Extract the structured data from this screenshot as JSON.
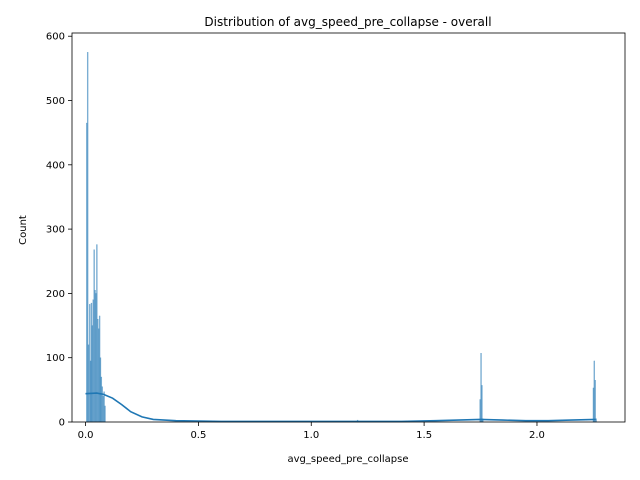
{
  "chart_data": {
    "type": "histogram",
    "title": "Distribution of avg_speed_pre_collapse - overall",
    "xlabel": "avg_speed_pre_collapse",
    "ylabel": "Count",
    "xlim": [
      -0.06,
      2.39
    ],
    "ylim": [
      0,
      605
    ],
    "xticks": [
      "0.0",
      "0.5",
      "1.0",
      "1.5",
      "2.0"
    ],
    "yticks": [
      "0",
      "100",
      "200",
      "300",
      "400",
      "500",
      "600"
    ],
    "grid": false,
    "legend": "none",
    "bar_color": "#1f77b4",
    "kde_color": "#1f77b4",
    "bins": [
      {
        "x": 0.005,
        "count": 465
      },
      {
        "x": 0.009,
        "count": 575
      },
      {
        "x": 0.013,
        "count": 120
      },
      {
        "x": 0.018,
        "count": 183
      },
      {
        "x": 0.022,
        "count": 95
      },
      {
        "x": 0.026,
        "count": 185
      },
      {
        "x": 0.03,
        "count": 150
      },
      {
        "x": 0.034,
        "count": 190
      },
      {
        "x": 0.038,
        "count": 268
      },
      {
        "x": 0.042,
        "count": 205
      },
      {
        "x": 0.046,
        "count": 200
      },
      {
        "x": 0.05,
        "count": 276
      },
      {
        "x": 0.054,
        "count": 160
      },
      {
        "x": 0.058,
        "count": 145
      },
      {
        "x": 0.062,
        "count": 165
      },
      {
        "x": 0.066,
        "count": 100
      },
      {
        "x": 0.07,
        "count": 70
      },
      {
        "x": 0.074,
        "count": 55
      },
      {
        "x": 0.078,
        "count": 40
      },
      {
        "x": 0.082,
        "count": 47
      },
      {
        "x": 0.086,
        "count": 25
      },
      {
        "x": 1.205,
        "count": 3
      },
      {
        "x": 1.748,
        "count": 35
      },
      {
        "x": 1.752,
        "count": 107
      },
      {
        "x": 1.756,
        "count": 57
      },
      {
        "x": 1.76,
        "count": 5
      },
      {
        "x": 2.25,
        "count": 53
      },
      {
        "x": 2.254,
        "count": 95
      },
      {
        "x": 2.258,
        "count": 65
      },
      {
        "x": 2.262,
        "count": 5
      }
    ],
    "kde": [
      {
        "x": 0.0,
        "y": 44
      },
      {
        "x": 0.05,
        "y": 45
      },
      {
        "x": 0.08,
        "y": 43
      },
      {
        "x": 0.12,
        "y": 37
      },
      {
        "x": 0.16,
        "y": 27
      },
      {
        "x": 0.2,
        "y": 16
      },
      {
        "x": 0.25,
        "y": 8
      },
      {
        "x": 0.3,
        "y": 4
      },
      {
        "x": 0.4,
        "y": 2
      },
      {
        "x": 0.6,
        "y": 1
      },
      {
        "x": 1.2,
        "y": 1
      },
      {
        "x": 1.4,
        "y": 1
      },
      {
        "x": 1.55,
        "y": 2
      },
      {
        "x": 1.65,
        "y": 3
      },
      {
        "x": 1.75,
        "y": 4
      },
      {
        "x": 1.85,
        "y": 3
      },
      {
        "x": 1.95,
        "y": 2
      },
      {
        "x": 2.05,
        "y": 2
      },
      {
        "x": 2.15,
        "y": 3
      },
      {
        "x": 2.26,
        "y": 4
      }
    ]
  }
}
